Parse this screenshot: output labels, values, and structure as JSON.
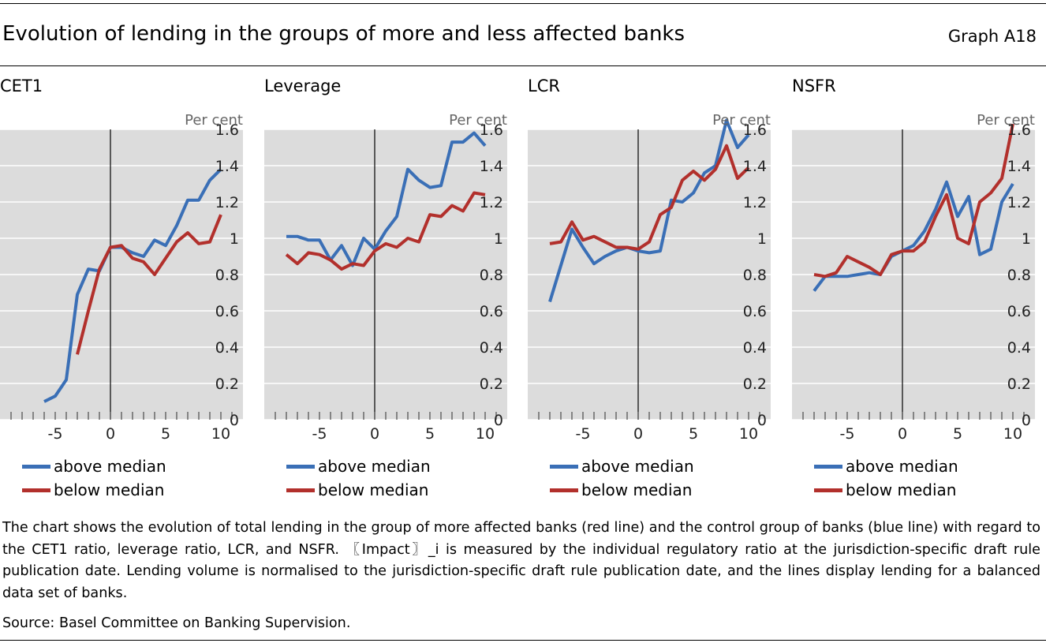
{
  "title": "Evolution of lending in the groups of more and less affected banks",
  "graph_label": "Graph A18",
  "unit_label": "Per cent",
  "legend": {
    "above": "above median",
    "below": "below median"
  },
  "colors": {
    "above": "#3a6fb6",
    "below": "#b2302c",
    "plot_bg": "#dcdcdc",
    "gridline": "#ffffff"
  },
  "chart_data": [
    {
      "type": "line",
      "title": "CET1",
      "xlim": [
        -10,
        12
      ],
      "ylim": [
        0,
        1.6
      ],
      "xticks": [
        -5,
        0,
        5,
        10
      ],
      "yticks": [
        0,
        0.2,
        0.4,
        0.6,
        0.8,
        1,
        1.2,
        1.4,
        1.6
      ],
      "ytick_labels": [
        "0",
        "0.2",
        "0.4",
        "0.6",
        "0.8",
        "1",
        "1.2",
        "1.4",
        "1.6"
      ],
      "vline_x": 0,
      "grid": true,
      "series": [
        {
          "name": "above median",
          "color": "#3a6fb6",
          "x": [
            -6,
            -5,
            -4,
            -3,
            -2,
            -1,
            0,
            1,
            2,
            3,
            4,
            5,
            6,
            7,
            8,
            9,
            10
          ],
          "y": [
            0.1,
            0.13,
            0.22,
            0.69,
            0.83,
            0.82,
            0.95,
            0.95,
            0.92,
            0.9,
            0.99,
            0.96,
            1.07,
            1.21,
            1.21,
            1.32,
            1.38
          ]
        },
        {
          "name": "below median",
          "color": "#b2302c",
          "x": [
            -3,
            -2,
            -1,
            0,
            1,
            2,
            3,
            4,
            5,
            6,
            7,
            8,
            9,
            10
          ],
          "y": [
            0.36,
            0.6,
            0.83,
            0.95,
            0.96,
            0.89,
            0.87,
            0.8,
            0.89,
            0.98,
            1.03,
            0.97,
            0.98,
            1.13
          ]
        }
      ]
    },
    {
      "type": "line",
      "title": "Leverage",
      "xlim": [
        -10,
        12
      ],
      "ylim": [
        0,
        1.6
      ],
      "xticks": [
        -5,
        0,
        5,
        10
      ],
      "yticks": [
        0,
        0.2,
        0.4,
        0.6,
        0.8,
        1,
        1.2,
        1.4,
        1.6
      ],
      "ytick_labels": [
        "0",
        "0.2",
        "0.4",
        "0.6",
        "0.8",
        "1",
        "1.2",
        "1.4",
        "1.6"
      ],
      "vline_x": 0,
      "grid": true,
      "series": [
        {
          "name": "above median",
          "color": "#3a6fb6",
          "x": [
            -8,
            -7,
            -6,
            -5,
            -4,
            -3,
            -2,
            -1,
            0,
            1,
            2,
            3,
            4,
            5,
            6,
            7,
            8,
            9,
            10
          ],
          "y": [
            1.01,
            1.01,
            0.99,
            0.99,
            0.88,
            0.96,
            0.85,
            1.0,
            0.94,
            1.04,
            1.12,
            1.38,
            1.32,
            1.28,
            1.29,
            1.53,
            1.53,
            1.58,
            1.51
          ]
        },
        {
          "name": "below median",
          "color": "#b2302c",
          "x": [
            -8,
            -7,
            -6,
            -5,
            -4,
            -3,
            -2,
            -1,
            0,
            1,
            2,
            3,
            4,
            5,
            6,
            7,
            8,
            9,
            10
          ],
          "y": [
            0.91,
            0.86,
            0.92,
            0.91,
            0.88,
            0.83,
            0.86,
            0.85,
            0.93,
            0.97,
            0.95,
            1.0,
            0.98,
            1.13,
            1.12,
            1.18,
            1.15,
            1.25,
            1.24
          ]
        }
      ]
    },
    {
      "type": "line",
      "title": "LCR",
      "xlim": [
        -10,
        12
      ],
      "ylim": [
        0,
        1.6
      ],
      "xticks": [
        -5,
        0,
        5,
        10
      ],
      "yticks": [
        0,
        0.2,
        0.4,
        0.6,
        0.8,
        1,
        1.2,
        1.4,
        1.6
      ],
      "ytick_labels": [
        "0",
        "0.2",
        "0.4",
        "0.6",
        "0.8",
        "1",
        "1.2",
        "1.4",
        "1.6"
      ],
      "vline_x": 0,
      "grid": true,
      "series": [
        {
          "name": "above median",
          "color": "#3a6fb6",
          "x": [
            -8,
            -7,
            -6,
            -5,
            -4,
            -3,
            -2,
            -1,
            0,
            1,
            2,
            3,
            4,
            5,
            6,
            7,
            8,
            9,
            10
          ],
          "y": [
            0.65,
            0.85,
            1.05,
            0.95,
            0.86,
            0.9,
            0.93,
            0.95,
            0.93,
            0.92,
            0.93,
            1.21,
            1.2,
            1.25,
            1.36,
            1.4,
            1.65,
            1.5,
            1.57
          ]
        },
        {
          "name": "below median",
          "color": "#b2302c",
          "x": [
            -8,
            -7,
            -6,
            -5,
            -4,
            -3,
            -2,
            -1,
            0,
            1,
            2,
            3,
            4,
            5,
            6,
            7,
            8,
            9,
            10
          ],
          "y": [
            0.97,
            0.98,
            1.09,
            0.99,
            1.01,
            0.98,
            0.95,
            0.95,
            0.94,
            0.98,
            1.13,
            1.17,
            1.32,
            1.37,
            1.32,
            1.38,
            1.51,
            1.33,
            1.39
          ]
        }
      ]
    },
    {
      "type": "line",
      "title": "NSFR",
      "xlim": [
        -10,
        12
      ],
      "ylim": [
        0,
        1.6
      ],
      "xticks": [
        -5,
        0,
        5,
        10
      ],
      "yticks": [
        0,
        0.2,
        0.4,
        0.6,
        0.8,
        1,
        1.2,
        1.4,
        1.6
      ],
      "ytick_labels": [
        "0",
        "0.2",
        "0.4",
        "0.6",
        "0.8",
        "1",
        "1.2",
        "1.4",
        "1.6"
      ],
      "vline_x": 0,
      "grid": true,
      "series": [
        {
          "name": "above median",
          "color": "#3a6fb6",
          "x": [
            -8,
            -7,
            -6,
            -5,
            -4,
            -3,
            -2,
            -1,
            0,
            1,
            2,
            3,
            4,
            5,
            6,
            7,
            8,
            9,
            10
          ],
          "y": [
            0.71,
            0.79,
            0.79,
            0.79,
            0.8,
            0.81,
            0.8,
            0.9,
            0.93,
            0.96,
            1.04,
            1.16,
            1.31,
            1.12,
            1.23,
            0.91,
            0.94,
            1.2,
            1.3
          ]
        },
        {
          "name": "below median",
          "color": "#b2302c",
          "x": [
            -8,
            -7,
            -6,
            -5,
            -4,
            -3,
            -2,
            -1,
            0,
            1,
            2,
            3,
            4,
            5,
            6,
            7,
            8,
            9,
            10
          ],
          "y": [
            0.8,
            0.79,
            0.81,
            0.9,
            0.87,
            0.84,
            0.8,
            0.91,
            0.93,
            0.93,
            0.98,
            1.12,
            1.24,
            1.0,
            0.97,
            1.2,
            1.25,
            1.33,
            1.63
          ]
        }
      ]
    }
  ],
  "note": "The chart shows the evolution of total lending in the group of more affected banks (red line) and the control group of banks (blue line) with regard to the CET1 ratio, leverage ratio, LCR, and NSFR. 〖Impact〗_i is measured by the individual regulatory ratio at the jurisdiction-specific draft rule publication date. Lending volume is normalised to the jurisdiction-specific draft rule publication date, and the lines display lending for a balanced data set of banks.",
  "source": "Source: Basel Committee on Banking Supervision."
}
